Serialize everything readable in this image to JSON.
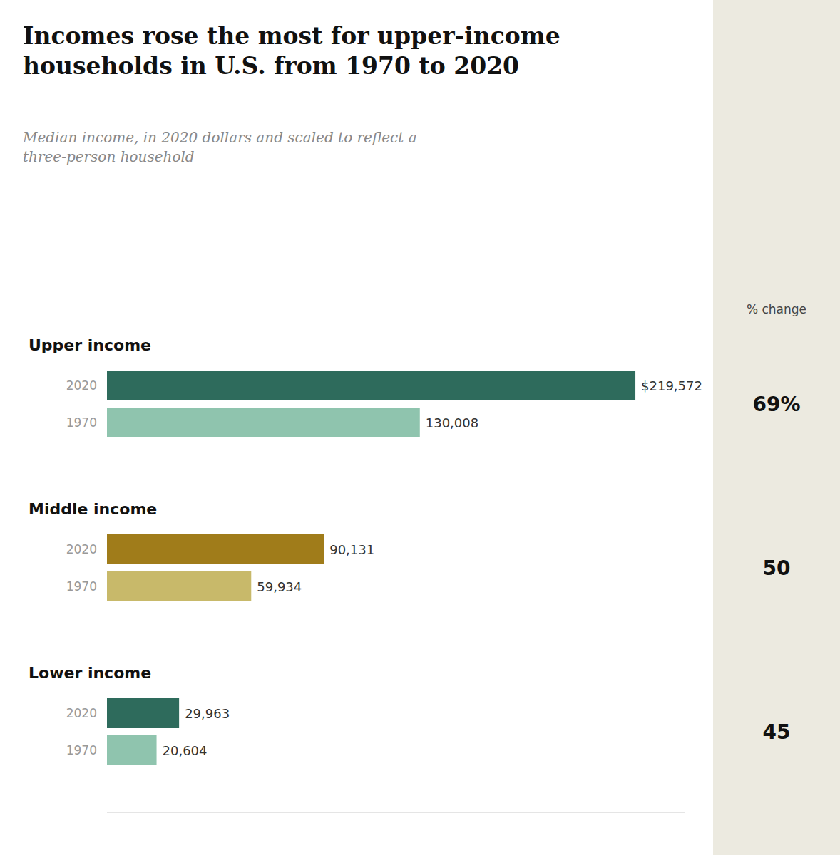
{
  "chart_data": {
    "type": "bar",
    "orientation": "horizontal",
    "title": "Incomes rose the most for upper-income\nhouseholds in U.S. from 1970 to 2020",
    "subtitle": "Median income, in 2020 dollars and scaled to reflect a\nthree-person household",
    "categories": [
      "Upper income",
      "Middle income",
      "Lower income"
    ],
    "series": [
      {
        "name": "2020",
        "colors": [
          "#2e6b5c",
          "#a07c1a",
          "#2e6b5c"
        ],
        "values": [
          219572,
          90131,
          29963
        ],
        "value_labels": [
          "$219,572",
          "90,131",
          "29,963"
        ]
      },
      {
        "name": "1970",
        "colors": [
          "#8fc4ae",
          "#c8b96a",
          "#8fc4ae"
        ],
        "values": [
          130008,
          59934,
          20604
        ],
        "value_labels": [
          "130,008",
          "59,934",
          "20,604"
        ]
      }
    ],
    "xlim": [
      0,
      240000
    ],
    "data_labels": true,
    "tick_labels": false,
    "grid": false,
    "pct_change_header": "% change",
    "pct_change": [
      69,
      50,
      45
    ],
    "pct_change_labels": [
      "69%",
      "50",
      "45"
    ]
  }
}
